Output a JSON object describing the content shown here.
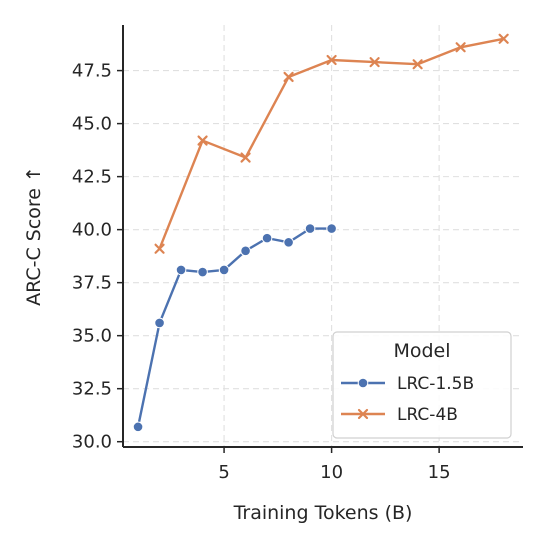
{
  "chart_data": {
    "type": "line",
    "xlabel": "Training Tokens (B)",
    "ylabel": "ARC-C Score ↑",
    "xlim": [
      0.3,
      18.9
    ],
    "ylim": [
      29.75,
      49.65
    ],
    "xticks": [
      5,
      10,
      15
    ],
    "yticks": [
      30.0,
      32.5,
      35.0,
      37.5,
      40.0,
      42.5,
      45.0,
      47.5
    ],
    "xtick_labels": [
      "5",
      "10",
      "15"
    ],
    "ytick_labels": [
      "30.0",
      "32.5",
      "35.0",
      "37.5",
      "40.0",
      "42.5",
      "45.0",
      "47.5"
    ],
    "grid": true,
    "legend": {
      "title": "Model",
      "placement": "lower-right"
    },
    "series": [
      {
        "name": "LRC-1.5B",
        "color": "#4c72b0",
        "marker": "circle",
        "x": [
          1,
          2,
          3,
          4,
          5,
          6,
          7,
          8,
          9,
          10
        ],
        "y": [
          30.7,
          35.6,
          38.1,
          38.0,
          38.1,
          39.0,
          39.6,
          39.4,
          40.05,
          40.05
        ]
      },
      {
        "name": "LRC-4B",
        "color": "#dd8452",
        "marker": "x",
        "x": [
          2,
          4,
          6,
          8,
          10,
          12,
          14,
          16,
          18
        ],
        "y": [
          39.1,
          44.2,
          43.4,
          47.2,
          48.0,
          47.9,
          47.8,
          48.6,
          49.0
        ]
      }
    ]
  }
}
